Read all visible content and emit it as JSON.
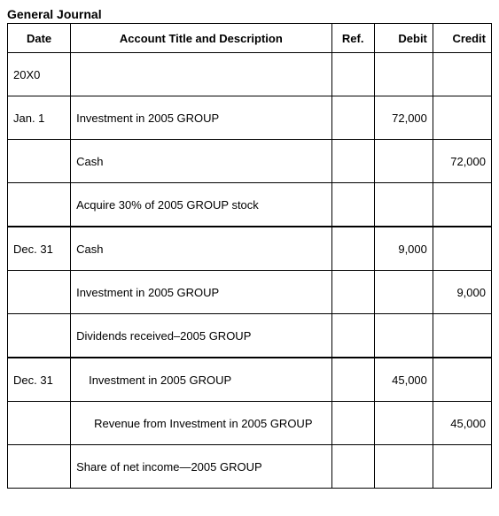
{
  "title": "General Journal",
  "headers": {
    "date": "Date",
    "desc": "Account Title and Description",
    "ref": "Ref.",
    "debit": "Debit",
    "credit": "Credit"
  },
  "rows": [
    {
      "date": "20X0",
      "desc": "",
      "ref": "",
      "debit": "",
      "credit": "",
      "indent": 0,
      "sep": false
    },
    {
      "date": "Jan. 1",
      "desc": "Investment in 2005 GROUP",
      "ref": "",
      "debit": "72,000",
      "credit": "",
      "indent": 0,
      "sep": false
    },
    {
      "date": "",
      "desc": "Cash",
      "ref": "",
      "debit": "",
      "credit": "72,000",
      "indent": 0,
      "sep": false
    },
    {
      "date": "",
      "desc": "Acquire 30% of 2005 GROUP stock",
      "ref": "",
      "debit": "",
      "credit": "",
      "indent": 0,
      "sep": false
    },
    {
      "date": "Dec. 31",
      "desc": "Cash",
      "ref": "",
      "debit": "9,000",
      "credit": "",
      "indent": 0,
      "sep": true
    },
    {
      "date": "",
      "desc": "Investment in 2005 GROUP",
      "ref": "",
      "debit": "",
      "credit": "9,000",
      "indent": 0,
      "sep": false
    },
    {
      "date": "",
      "desc": "Dividends received–2005 GROUP",
      "ref": "",
      "debit": "",
      "credit": "",
      "indent": 0,
      "sep": false
    },
    {
      "date": "Dec. 31",
      "desc": "Investment in 2005 GROUP",
      "ref": "",
      "debit": "45,000",
      "credit": "",
      "indent": 1,
      "sep": true
    },
    {
      "date": "",
      "desc": "Revenue from Investment in 2005 GROUP",
      "ref": "",
      "debit": "",
      "credit": "45,000",
      "indent": 2,
      "sep": false
    },
    {
      "date": "",
      "desc": "Share of net income—2005 GROUP",
      "ref": "",
      "debit": "",
      "credit": "",
      "indent": 0,
      "sep": false
    }
  ]
}
